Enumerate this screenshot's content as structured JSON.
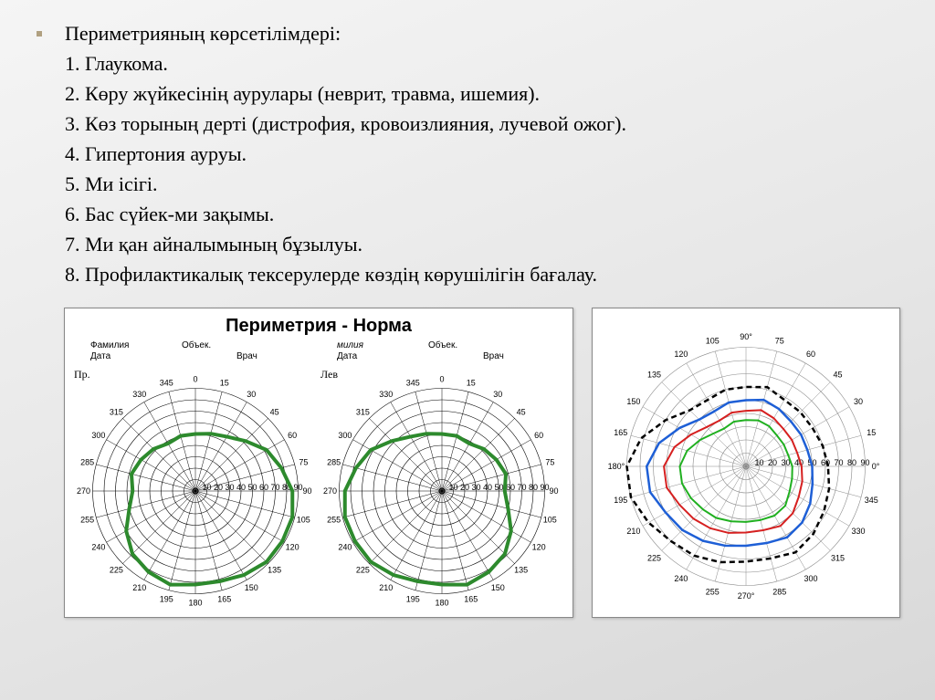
{
  "bullet_text": {
    "title": "Периметрияның көрсетілімдері:",
    "items": [
      "1. Глаукома.",
      "2. Көру жүйкесінің аурулары  (неврит, травма, ишемия).",
      "3. Көз торының дерті (дистрофия, кровоизлияния, лучевой ожог).",
      "4. Гипертония ауруы.",
      "5. Ми ісігі.",
      "6. Бас сүйек-ми зақымы.",
      "7. Ми қан айналымының бұзылуы.",
      "8. Профилактикалық тексерулерде көздің көрушілігін бағалау."
    ]
  },
  "left_panel": {
    "title": "Периметрия - Норма",
    "form_labels": {
      "fam": "Фамилия",
      "date": "Дата",
      "obj": "Объек.",
      "vrach": "Врач"
    },
    "charts": [
      {
        "side_label": "Пр.",
        "outline_color": "#2d8a2d",
        "outline_width": 4,
        "angle_labels": [
          90,
          75,
          60,
          45,
          30,
          15,
          0,
          345,
          330,
          315,
          300,
          285,
          270,
          255,
          240,
          225,
          210,
          195,
          180,
          165,
          150,
          135,
          120,
          105
        ],
        "radial_labels": [
          10,
          20,
          30,
          40,
          50,
          60,
          70,
          80,
          90
        ],
        "outline": [
          {
            "a": 0,
            "r": 85
          },
          {
            "a": 15,
            "r": 78
          },
          {
            "a": 30,
            "r": 72
          },
          {
            "a": 45,
            "r": 62
          },
          {
            "a": 60,
            "r": 55
          },
          {
            "a": 75,
            "r": 52
          },
          {
            "a": 90,
            "r": 50
          },
          {
            "a": 105,
            "r": 50
          },
          {
            "a": 120,
            "r": 48
          },
          {
            "a": 135,
            "r": 52
          },
          {
            "a": 150,
            "r": 55
          },
          {
            "a": 165,
            "r": 58
          },
          {
            "a": 180,
            "r": 55
          },
          {
            "a": 195,
            "r": 60
          },
          {
            "a": 210,
            "r": 70
          },
          {
            "a": 225,
            "r": 78
          },
          {
            "a": 240,
            "r": 82
          },
          {
            "a": 255,
            "r": 85
          },
          {
            "a": 270,
            "r": 82
          },
          {
            "a": 285,
            "r": 82
          },
          {
            "a": 300,
            "r": 85
          },
          {
            "a": 315,
            "r": 88
          },
          {
            "a": 330,
            "r": 88
          },
          {
            "a": 345,
            "r": 88
          }
        ]
      },
      {
        "side_label": "Лев",
        "outline_color": "#2d8a2d",
        "outline_width": 4,
        "angle_labels": [
          90,
          75,
          60,
          45,
          30,
          15,
          0,
          345,
          330,
          315,
          300,
          285,
          270,
          255,
          240,
          225,
          210,
          195,
          180,
          165,
          150,
          135,
          120,
          105
        ],
        "radial_labels": [
          10,
          20,
          30,
          40,
          50,
          60,
          70,
          80,
          90
        ],
        "outline": [
          {
            "a": 0,
            "r": 55
          },
          {
            "a": 15,
            "r": 58
          },
          {
            "a": 30,
            "r": 55
          },
          {
            "a": 45,
            "r": 52
          },
          {
            "a": 60,
            "r": 48
          },
          {
            "a": 75,
            "r": 50
          },
          {
            "a": 90,
            "r": 50
          },
          {
            "a": 105,
            "r": 52
          },
          {
            "a": 120,
            "r": 55
          },
          {
            "a": 135,
            "r": 62
          },
          {
            "a": 150,
            "r": 72
          },
          {
            "a": 165,
            "r": 78
          },
          {
            "a": 180,
            "r": 85
          },
          {
            "a": 195,
            "r": 88
          },
          {
            "a": 210,
            "r": 88
          },
          {
            "a": 225,
            "r": 88
          },
          {
            "a": 240,
            "r": 85
          },
          {
            "a": 255,
            "r": 82
          },
          {
            "a": 270,
            "r": 82
          },
          {
            "a": 285,
            "r": 85
          },
          {
            "a": 300,
            "r": 82
          },
          {
            "a": 315,
            "r": 78
          },
          {
            "a": 330,
            "r": 70
          },
          {
            "a": 345,
            "r": 60
          }
        ]
      }
    ],
    "grid_color": "#000",
    "grid_rings": 9,
    "grid_spokes": 24
  },
  "right_panel": {
    "angle_axis_labels": [
      "0°",
      "15",
      "30",
      "45",
      "60",
      "75",
      "90°",
      "105",
      "120",
      "135",
      "150",
      "165",
      "180°",
      "195",
      "210",
      "225",
      "240",
      "255",
      "270°",
      "285",
      "300",
      "315",
      "330",
      "345"
    ],
    "radial_labels": [
      10,
      20,
      30,
      40,
      50,
      60,
      70,
      80,
      90
    ],
    "grid_color": "#888",
    "grid_rings": 9,
    "grid_spokes": 24,
    "series": [
      {
        "color": "#000000",
        "width": 2.5,
        "dash": "6,4",
        "points": [
          {
            "a": 0,
            "r": 62
          },
          {
            "a": 15,
            "r": 60
          },
          {
            "a": 30,
            "r": 58
          },
          {
            "a": 45,
            "r": 58
          },
          {
            "a": 60,
            "r": 58
          },
          {
            "a": 75,
            "r": 62
          },
          {
            "a": 90,
            "r": 60
          },
          {
            "a": 105,
            "r": 60
          },
          {
            "a": 120,
            "r": 58
          },
          {
            "a": 135,
            "r": 60
          },
          {
            "a": 150,
            "r": 70
          },
          {
            "a": 165,
            "r": 82
          },
          {
            "a": 180,
            "r": 90
          },
          {
            "a": 195,
            "r": 90
          },
          {
            "a": 210,
            "r": 85
          },
          {
            "a": 225,
            "r": 80
          },
          {
            "a": 240,
            "r": 78
          },
          {
            "a": 255,
            "r": 75
          },
          {
            "a": 270,
            "r": 72
          },
          {
            "a": 285,
            "r": 72
          },
          {
            "a": 300,
            "r": 75
          },
          {
            "a": 315,
            "r": 72
          },
          {
            "a": 330,
            "r": 68
          },
          {
            "a": 345,
            "r": 65
          }
        ]
      },
      {
        "color": "#1e5fd6",
        "width": 2.5,
        "dash": "",
        "points": [
          {
            "a": 0,
            "r": 50
          },
          {
            "a": 15,
            "r": 48
          },
          {
            "a": 30,
            "r": 48
          },
          {
            "a": 45,
            "r": 48
          },
          {
            "a": 60,
            "r": 50
          },
          {
            "a": 75,
            "r": 52
          },
          {
            "a": 90,
            "r": 50
          },
          {
            "a": 105,
            "r": 50
          },
          {
            "a": 120,
            "r": 48
          },
          {
            "a": 135,
            "r": 50
          },
          {
            "a": 150,
            "r": 58
          },
          {
            "a": 165,
            "r": 68
          },
          {
            "a": 180,
            "r": 75
          },
          {
            "a": 195,
            "r": 75
          },
          {
            "a": 210,
            "r": 70
          },
          {
            "a": 225,
            "r": 68
          },
          {
            "a": 240,
            "r": 65
          },
          {
            "a": 255,
            "r": 62
          },
          {
            "a": 270,
            "r": 60
          },
          {
            "a": 285,
            "r": 60
          },
          {
            "a": 300,
            "r": 62
          },
          {
            "a": 315,
            "r": 60
          },
          {
            "a": 330,
            "r": 56
          },
          {
            "a": 345,
            "r": 52
          }
        ]
      },
      {
        "color": "#d62020",
        "width": 2,
        "dash": "",
        "points": [
          {
            "a": 0,
            "r": 42
          },
          {
            "a": 15,
            "r": 40
          },
          {
            "a": 30,
            "r": 40
          },
          {
            "a": 45,
            "r": 40
          },
          {
            "a": 60,
            "r": 42
          },
          {
            "a": 75,
            "r": 44
          },
          {
            "a": 90,
            "r": 42
          },
          {
            "a": 105,
            "r": 42
          },
          {
            "a": 120,
            "r": 40
          },
          {
            "a": 135,
            "r": 42
          },
          {
            "a": 150,
            "r": 48
          },
          {
            "a": 165,
            "r": 56
          },
          {
            "a": 180,
            "r": 62
          },
          {
            "a": 195,
            "r": 62
          },
          {
            "a": 210,
            "r": 58
          },
          {
            "a": 225,
            "r": 56
          },
          {
            "a": 240,
            "r": 54
          },
          {
            "a": 255,
            "r": 52
          },
          {
            "a": 270,
            "r": 50
          },
          {
            "a": 285,
            "r": 50
          },
          {
            "a": 300,
            "r": 52
          },
          {
            "a": 315,
            "r": 50
          },
          {
            "a": 330,
            "r": 46
          },
          {
            "a": 345,
            "r": 44
          }
        ]
      },
      {
        "color": "#20b020",
        "width": 2,
        "dash": "",
        "points": [
          {
            "a": 0,
            "r": 35
          },
          {
            "a": 15,
            "r": 33
          },
          {
            "a": 30,
            "r": 33
          },
          {
            "a": 45,
            "r": 33
          },
          {
            "a": 60,
            "r": 35
          },
          {
            "a": 75,
            "r": 36
          },
          {
            "a": 90,
            "r": 35
          },
          {
            "a": 105,
            "r": 35
          },
          {
            "a": 120,
            "r": 33
          },
          {
            "a": 135,
            "r": 35
          },
          {
            "a": 150,
            "r": 40
          },
          {
            "a": 165,
            "r": 46
          },
          {
            "a": 180,
            "r": 50
          },
          {
            "a": 195,
            "r": 50
          },
          {
            "a": 210,
            "r": 48
          },
          {
            "a": 225,
            "r": 46
          },
          {
            "a": 240,
            "r": 45
          },
          {
            "a": 255,
            "r": 43
          },
          {
            "a": 270,
            "r": 42
          },
          {
            "a": 285,
            "r": 42
          },
          {
            "a": 300,
            "r": 43
          },
          {
            "a": 315,
            "r": 42
          },
          {
            "a": 330,
            "r": 38
          },
          {
            "a": 345,
            "r": 36
          }
        ]
      }
    ]
  },
  "colors": {
    "bg": "#ffffff",
    "text": "#000000"
  }
}
